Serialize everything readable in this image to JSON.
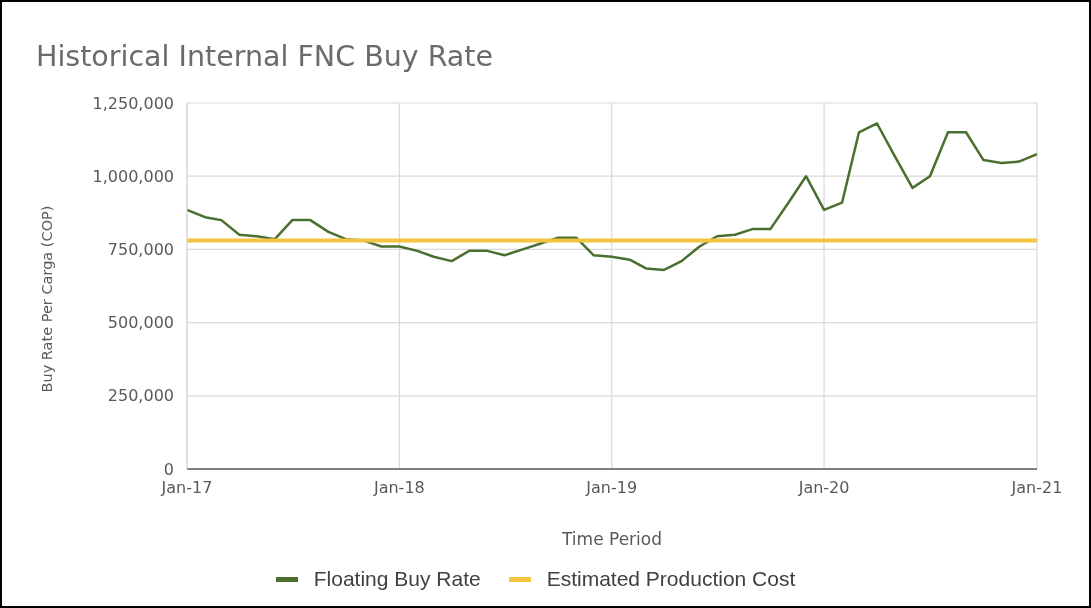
{
  "chart_data": {
    "type": "line",
    "title": "Historical Internal FNC Buy Rate",
    "xlabel": "Time Period",
    "ylabel": "Buy Rate Per Carga (COP)",
    "x": [
      "2017-01",
      "2017-02",
      "2017-03",
      "2017-04",
      "2017-05",
      "2017-06",
      "2017-07",
      "2017-08",
      "2017-09",
      "2017-10",
      "2017-11",
      "2017-12",
      "2018-01",
      "2018-02",
      "2018-03",
      "2018-04",
      "2018-05",
      "2018-06",
      "2018-07",
      "2018-08",
      "2018-09",
      "2018-10",
      "2018-11",
      "2018-12",
      "2019-01",
      "2019-02",
      "2019-03",
      "2019-04",
      "2019-05",
      "2019-06",
      "2019-07",
      "2019-08",
      "2019-09",
      "2019-10",
      "2019-11",
      "2019-12",
      "2020-01",
      "2020-02",
      "2020-03",
      "2020-04",
      "2020-05",
      "2020-06",
      "2020-07",
      "2020-08",
      "2020-09",
      "2020-10",
      "2020-11",
      "2020-12",
      "2021-01"
    ],
    "series": [
      {
        "name": "Floating Buy Rate",
        "color": "#4a6f2e",
        "values": [
          885000,
          860000,
          850000,
          800000,
          795000,
          785000,
          850000,
          850000,
          810000,
          785000,
          780000,
          760000,
          760000,
          745000,
          725000,
          710000,
          745000,
          745000,
          730000,
          750000,
          770000,
          790000,
          790000,
          730000,
          725000,
          715000,
          685000,
          680000,
          710000,
          760000,
          795000,
          800000,
          820000,
          820000,
          910000,
          1000000,
          885000,
          910000,
          1150000,
          1180000,
          1070000,
          960000,
          1000000,
          1150000,
          1150000,
          1055000,
          1045000,
          1050000,
          1075000
        ]
      },
      {
        "name": "Estimated Production Cost",
        "color": "#f2c43f",
        "x": [
          "2017-01",
          "2021-01"
        ],
        "values": [
          780000,
          780000
        ]
      }
    ],
    "xlim": [
      "2017-01",
      "2021-01"
    ],
    "xticks": [
      {
        "value": "2017-01",
        "label": "Jan-17"
      },
      {
        "value": "2018-01",
        "label": "Jan-18"
      },
      {
        "value": "2019-01",
        "label": "Jan-19"
      },
      {
        "value": "2020-01",
        "label": "Jan-20"
      },
      {
        "value": "2021-01",
        "label": "Jan-21"
      }
    ],
    "ylim": [
      0,
      1250000
    ],
    "yticks": [
      0,
      {
        "value": 250000,
        "label": "250,000"
      },
      {
        "value": 500000,
        "label": "500,000"
      },
      {
        "value": 750000,
        "label": "750,000"
      },
      {
        "value": 1000000,
        "label": "1,000,000"
      },
      {
        "value": 1250000,
        "label": "1,250,000"
      }
    ],
    "grid": true,
    "legend": "bottom"
  }
}
